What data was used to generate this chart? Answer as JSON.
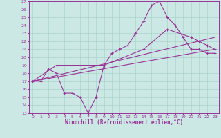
{
  "xlabel": "Windchill (Refroidissement éolien,°C)",
  "xlim": [
    -0.5,
    23.5
  ],
  "ylim": [
    13,
    27
  ],
  "yticks": [
    13,
    14,
    15,
    16,
    17,
    18,
    19,
    20,
    21,
    22,
    23,
    24,
    25,
    26,
    27
  ],
  "xticks": [
    0,
    1,
    2,
    3,
    4,
    5,
    6,
    7,
    8,
    9,
    10,
    11,
    12,
    13,
    14,
    15,
    16,
    17,
    18,
    19,
    20,
    21,
    22,
    23
  ],
  "bg_color": "#cce8e4",
  "grid_color": "#aad4ce",
  "line_color": "#993399",
  "line1_x": [
    0,
    1,
    2,
    3,
    4,
    5,
    6,
    7,
    8,
    9,
    10,
    11,
    12,
    13,
    14,
    15,
    16,
    17,
    18,
    19,
    20,
    21,
    22,
    23
  ],
  "line1_y": [
    17.0,
    17.0,
    18.5,
    18.0,
    15.5,
    15.5,
    15.0,
    13.0,
    15.0,
    19.0,
    20.5,
    21.0,
    21.5,
    23.0,
    24.5,
    26.5,
    27.0,
    25.0,
    24.0,
    22.5,
    21.0,
    21.0,
    20.5,
    20.5
  ],
  "line2_x": [
    0,
    3,
    9,
    14,
    17,
    20,
    21,
    22,
    23
  ],
  "line2_y": [
    17.0,
    19.0,
    19.0,
    21.0,
    23.5,
    22.5,
    22.0,
    21.5,
    21.0
  ],
  "line3_x": [
    0,
    23
  ],
  "line3_y": [
    17.0,
    21.0
  ],
  "line4_x": [
    0,
    23
  ],
  "line4_y": [
    17.0,
    22.5
  ]
}
